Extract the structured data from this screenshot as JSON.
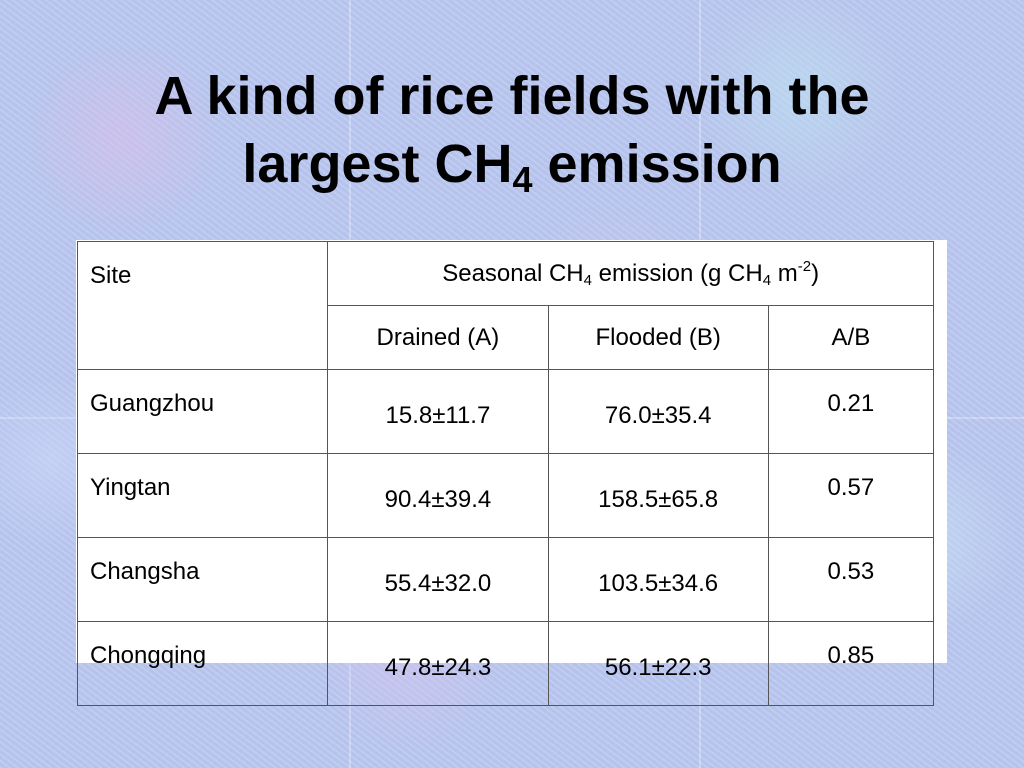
{
  "title": {
    "line1": "A kind of rice fields with the",
    "line2_prefix": "largest CH",
    "line2_sub": "4",
    "line2_suffix": " emission"
  },
  "table": {
    "header": {
      "site": "Site",
      "emission_prefix": "Seasonal CH",
      "emission_sub1": "4",
      "emission_mid": " emission (g CH",
      "emission_sub2": "4",
      "emission_mid2": " m",
      "emission_sup": "-2",
      "emission_suffix": ")",
      "drained": "Drained (A)",
      "flooded": "Flooded (B)",
      "ratio": "A/B"
    },
    "rows": [
      {
        "site": "Guangzhou",
        "drained": "15.8±11.7",
        "flooded": "76.0±35.4",
        "ratio": "0.21"
      },
      {
        "site": "Yingtan",
        "drained": "90.4±39.4",
        "flooded": "158.5±65.8",
        "ratio": "0.57"
      },
      {
        "site": "Changsha",
        "drained": "55.4±32.0",
        "flooded": "103.5±34.6",
        "ratio": "0.53"
      },
      {
        "site": "Chongqing",
        "drained": "47.8±24.3",
        "flooded": "56.1±22.3",
        "ratio": "0.85"
      }
    ]
  }
}
